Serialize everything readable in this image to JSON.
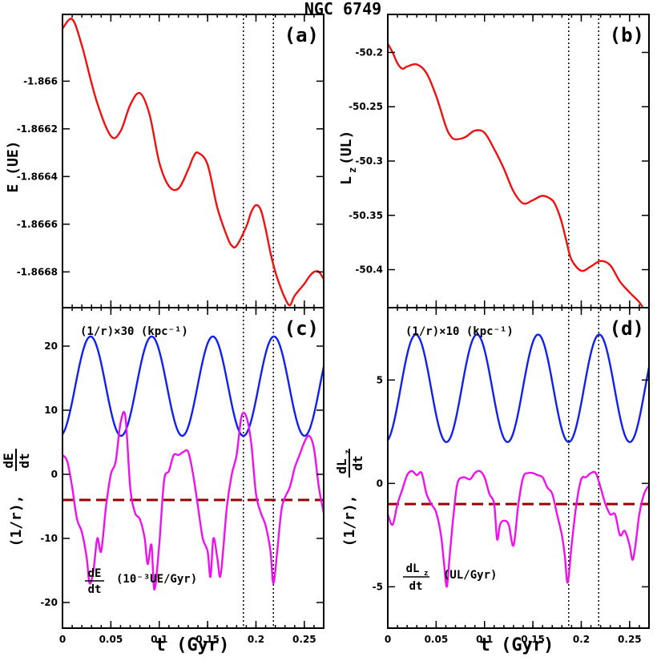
{
  "figure_title": "NGC 6749",
  "xlabel": "t (Gyr)",
  "chart_data": [
    {
      "panel": "(a)",
      "type": "line",
      "ylabel": "E (UE)",
      "xlim": [
        0,
        0.27
      ],
      "ylim": [
        -1.86695,
        -1.86572
      ],
      "xticks": [
        0,
        0.05,
        0.1,
        0.15,
        0.2,
        0.25
      ],
      "yticks": [
        -1.866,
        -1.8662,
        -1.8664,
        -1.8666,
        -1.8668
      ],
      "vlines": [
        0.187,
        0.218
      ],
      "series": [
        {
          "color": "#ee1111",
          "x": [
            0,
            0.01,
            0.02,
            0.035,
            0.05,
            0.06,
            0.07,
            0.08,
            0.09,
            0.1,
            0.11,
            0.12,
            0.13,
            0.135,
            0.14,
            0.15,
            0.16,
            0.17,
            0.175,
            0.18,
            0.19,
            0.195,
            0.2,
            0.205,
            0.21,
            0.215,
            0.22,
            0.225,
            0.23,
            0.235,
            0.24,
            0.25,
            0.255,
            0.26,
            0.265,
            0.27
          ],
          "y": [
            -1.86578,
            -1.86574,
            -1.86585,
            -1.86608,
            -1.86623,
            -1.86621,
            -1.8661,
            -1.86605,
            -1.86614,
            -1.86634,
            -1.86644,
            -1.86645,
            -1.86637,
            -1.86632,
            -1.8663,
            -1.86635,
            -1.86653,
            -1.86665,
            -1.86669,
            -1.86669,
            -1.86661,
            -1.86655,
            -1.86652,
            -1.86654,
            -1.86662,
            -1.86672,
            -1.8668,
            -1.86686,
            -1.86691,
            -1.86694,
            -1.8669,
            -1.86685,
            -1.86682,
            -1.8668,
            -1.8668,
            -1.86683
          ]
        }
      ]
    },
    {
      "panel": "(b)",
      "type": "line",
      "ylabel": "Lz (UL)",
      "xlim": [
        0,
        0.27
      ],
      "ylim": [
        -50.435,
        -50.165
      ],
      "xticks": [
        0,
        0.05,
        0.1,
        0.15,
        0.2,
        0.25
      ],
      "yticks": [
        -50.2,
        -50.25,
        -50.3,
        -50.35,
        -50.4
      ],
      "vlines": [
        0.187,
        0.218
      ],
      "series": [
        {
          "color": "#ee1111",
          "x": [
            0,
            0.005,
            0.01,
            0.015,
            0.02,
            0.03,
            0.04,
            0.05,
            0.06,
            0.065,
            0.07,
            0.08,
            0.09,
            0.1,
            0.11,
            0.12,
            0.13,
            0.14,
            0.15,
            0.16,
            0.17,
            0.175,
            0.18,
            0.185,
            0.19,
            0.2,
            0.21,
            0.22,
            0.23,
            0.24,
            0.25,
            0.26,
            0.265
          ],
          "y": [
            -50.192,
            -50.2,
            -50.21,
            -50.215,
            -50.213,
            -50.211,
            -50.219,
            -50.24,
            -50.268,
            -50.277,
            -50.28,
            -50.278,
            -50.272,
            -50.274,
            -50.289,
            -50.307,
            -50.328,
            -50.339,
            -50.336,
            -50.332,
            -50.336,
            -50.344,
            -50.357,
            -50.375,
            -50.391,
            -50.401,
            -50.397,
            -50.392,
            -50.396,
            -50.411,
            -50.421,
            -50.43,
            -50.437
          ]
        }
      ]
    },
    {
      "panel": "(c)",
      "type": "line",
      "ylabel": "(1/r), dE/dt",
      "xlim": [
        0,
        0.27
      ],
      "ylim": [
        -24,
        26
      ],
      "xticks": [
        0,
        0.05,
        0.1,
        0.15,
        0.2,
        0.25
      ],
      "yticks": [
        20,
        10,
        0,
        -10,
        -20
      ],
      "vlines": [
        0.187,
        0.218
      ],
      "hline": {
        "y": -4,
        "color": "#990000"
      },
      "series": [
        {
          "name": "(1/r)×30 (kpc⁻¹)",
          "color": "#1020ee",
          "kind": "cusp",
          "peaks": [
            0.029,
            0.0925,
            0.155,
            0.2185
          ],
          "period": 0.0632,
          "max": 21.5,
          "min": 6
        },
        {
          "name": "dE/dt (10⁻³UE/Gyr)",
          "color": "#ee11ee",
          "x": [
            0,
            0.005,
            0.01,
            0.015,
            0.02,
            0.025,
            0.028,
            0.032,
            0.036,
            0.04,
            0.045,
            0.05,
            0.055,
            0.06,
            0.065,
            0.07,
            0.075,
            0.08,
            0.085,
            0.088,
            0.092,
            0.095,
            0.1,
            0.105,
            0.11,
            0.115,
            0.12,
            0.125,
            0.13,
            0.135,
            0.14,
            0.145,
            0.15,
            0.153,
            0.156,
            0.16,
            0.163,
            0.166,
            0.17,
            0.175,
            0.18,
            0.185,
            0.19,
            0.195,
            0.2,
            0.205,
            0.21,
            0.215,
            0.218,
            0.222,
            0.227,
            0.235,
            0.24,
            0.245,
            0.25,
            0.255,
            0.26,
            0.265,
            0.27
          ],
          "y": [
            3,
            2,
            -2,
            -7,
            -9,
            -13,
            -17,
            -15,
            -10,
            -12,
            -5,
            0,
            2,
            8,
            9,
            -2,
            -6,
            -7,
            -10,
            -14,
            -11,
            -18,
            -11,
            -1,
            0.5,
            3,
            3,
            3.5,
            3.5,
            0,
            -5,
            -10,
            -12,
            -16,
            -10,
            -13,
            -16,
            -12,
            -5,
            0,
            3,
            9,
            9,
            5,
            -3,
            -6,
            -8,
            -12,
            -17,
            -12,
            -5,
            -2,
            1,
            3,
            5,
            6,
            4,
            -2,
            -6
          ]
        }
      ]
    },
    {
      "panel": "(d)",
      "type": "line",
      "ylabel": "(1/r), dLz/dt",
      "xlim": [
        0,
        0.27
      ],
      "ylim": [
        -7,
        8.5
      ],
      "xticks": [
        0,
        0.05,
        0.1,
        0.15,
        0.2,
        0.25
      ],
      "yticks": [
        5,
        0,
        -5
      ],
      "vlines": [
        0.187,
        0.218
      ],
      "hline": {
        "y": -1,
        "color": "#990000"
      },
      "series": [
        {
          "name": "(1/r)×10 (kpc⁻¹)",
          "color": "#1020ee",
          "kind": "cusp",
          "peaks": [
            0.029,
            0.0925,
            0.155,
            0.2185
          ],
          "period": 0.0632,
          "max": 7.2,
          "min": 2
        },
        {
          "name": "dLz/dt (UL/Gyr)",
          "color": "#ee11ee",
          "x": [
            0,
            0.005,
            0.01,
            0.015,
            0.02,
            0.025,
            0.03,
            0.035,
            0.04,
            0.045,
            0.05,
            0.055,
            0.058,
            0.061,
            0.064,
            0.068,
            0.072,
            0.078,
            0.085,
            0.09,
            0.095,
            0.1,
            0.105,
            0.11,
            0.113,
            0.116,
            0.12,
            0.125,
            0.13,
            0.135,
            0.14,
            0.145,
            0.15,
            0.155,
            0.16,
            0.165,
            0.17,
            0.175,
            0.18,
            0.183,
            0.186,
            0.19,
            0.195,
            0.2,
            0.205,
            0.21,
            0.215,
            0.22,
            0.225,
            0.23,
            0.235,
            0.24,
            0.245,
            0.25,
            0.253,
            0.256,
            0.26,
            0.265,
            0.27
          ],
          "y": [
            -1.5,
            -2,
            -1,
            -0.3,
            0.4,
            0.6,
            0.4,
            0.5,
            -0.5,
            -1,
            -1.4,
            -2.5,
            -3.8,
            -5,
            -3.5,
            -1.5,
            0,
            0.3,
            0.2,
            0.5,
            0.6,
            0.3,
            -0.5,
            -1,
            -2.7,
            -2,
            -1.8,
            -2,
            -3,
            -1,
            0.3,
            0.5,
            0.5,
            0.4,
            0.3,
            -0.2,
            -0.5,
            -1.5,
            -2.5,
            -3.5,
            -4.8,
            -3,
            -1,
            0.2,
            0.3,
            0.5,
            0.5,
            -0.2,
            -1,
            -1.5,
            -1.5,
            -2.5,
            -2.3,
            -3,
            -3.7,
            -3,
            -1.5,
            -0.5,
            -0.1
          ]
        }
      ]
    }
  ],
  "annotations": {
    "c_top": "(1/r)×30 (kpc⁻¹)",
    "c_bottom_frac": "dE/dt",
    "c_bottom_num": "dE",
    "c_bottom_den": "dt",
    "c_bottom_units": "(10⁻³UE/Gyr)",
    "d_top": "(1/r)×10 (kpc⁻¹)",
    "d_bottom_num": "dL",
    "d_bottom_sub": "z",
    "d_bottom_den": "dt",
    "d_bottom_units": "(UL/Gyr)",
    "a_ylabel_main": "E (UE)",
    "b_ylabel_main": "L",
    "b_ylabel_sub": "z",
    "b_ylabel_rest": "(UL)",
    "c_ylabel_pre": "(1/r),",
    "c_ylabel_num": "dE",
    "c_ylabel_den": "dt",
    "d_ylabel_pre": "(1/r),",
    "d_ylabel_num": "dL",
    "d_ylabel_sub": "z",
    "d_ylabel_den": "dt"
  }
}
